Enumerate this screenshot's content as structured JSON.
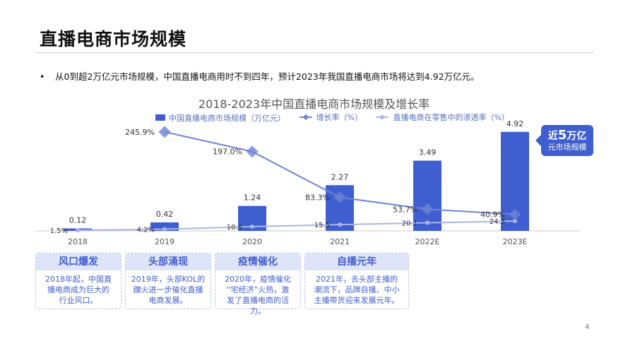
{
  "slide": {
    "title": "直播电商市场规模",
    "bullet": "从0到超2万亿元市场规模，中国直播电商用时不到四年，预计2023年我国直播电商市场将达到4.92万亿元。",
    "page_number": "4"
  },
  "chart_data": {
    "type": "bar",
    "title": "2018-2023年中国直播电商市场规模及增长率",
    "categories": [
      "2018",
      "2019",
      "2020",
      "2021",
      "2022E",
      "2023E"
    ],
    "series": [
      {
        "name": "中国直播电商市场规模（万亿元）",
        "type": "bar",
        "values": [
          0.12,
          0.42,
          1.24,
          2.27,
          3.49,
          4.92
        ],
        "labels": [
          "0.12",
          "0.42",
          "1.24",
          "2.27",
          "3.49",
          "4.92"
        ]
      },
      {
        "name": "增长率（%）",
        "type": "line",
        "values": [
          null,
          245.9,
          197.0,
          83.3,
          53.7,
          40.9
        ],
        "labels": [
          "",
          "245.9%",
          "197.0%",
          "83.3%",
          "53.7%",
          "40.9%"
        ]
      },
      {
        "name": "直播电商在零售中的渗透率（%）",
        "type": "line",
        "values": [
          1.5,
          4.2,
          10.6,
          15.5,
          20.1,
          24.3
        ],
        "labels": [
          "1.5%",
          "4.2%",
          "10.6",
          "15.5",
          "20.1",
          "24.3"
        ]
      }
    ],
    "colors": {
      "bar": "#3f5ecf",
      "growth": "#6e82d6",
      "penetration": "#a9b5ea",
      "axis": "#c8c8c8",
      "label": "#333333"
    },
    "ylim_bar": [
      0,
      5.5
    ],
    "ylim_percent": [
      0,
      300
    ],
    "legend_position": "top-center",
    "grid": false
  },
  "callout": {
    "prefix": "近",
    "number": "5",
    "suffix": "万亿",
    "line2": "元市场规模"
  },
  "cards": [
    {
      "title": "风口爆发",
      "text_lines": [
        "2018年起，中国直",
        "播电商成为巨大的",
        "行业风口。"
      ]
    },
    {
      "title": "头部涌现",
      "text_lines": [
        "2019年，头部KOL的",
        "蹿火进一步催化直播",
        "电商发展。"
      ]
    },
    {
      "title": "疫情催化",
      "text_lines": [
        "2020年，疫情催化",
        "“宅经济”火热，激",
        "发了直播电商的活力。"
      ]
    },
    {
      "title": "自播元年",
      "text_lines": [
        "2021年，去头部主播的",
        "潮流下，品牌自播、中小",
        "主播带货迎来发展元年。"
      ]
    }
  ]
}
